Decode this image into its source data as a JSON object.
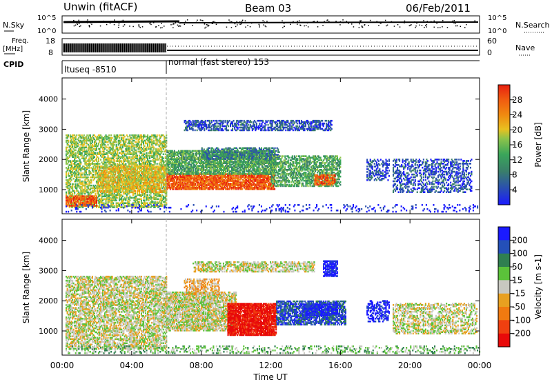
{
  "header": {
    "station": "Unwin (fitACF)",
    "beam": "Beam 03",
    "date": "06/Feb/2011"
  },
  "panels": {
    "nsky_label": "N.Sky",
    "nsearch_label": "N.Search",
    "noise_ticks_left": [
      "10^5",
      "10^0"
    ],
    "noise_ticks_right": [
      "10^5",
      "10^0"
    ],
    "freq_label": "Freq.",
    "freq_unit": "[MHz]",
    "freq_ticks": [
      "18",
      "8"
    ],
    "nave_label": "Nave",
    "nave_ticks": [
      "60",
      "0"
    ],
    "cpid_label": "CPID",
    "cpid_1": "ltuseq -8510",
    "cpid_2": "normal (fast stereo) 153"
  },
  "colors": {
    "power": [
      "#1a1aff",
      "#2a4fb0",
      "#3a7f6a",
      "#3aa65a",
      "#8cc34a",
      "#e8c020",
      "#f08a10",
      "#f05a10",
      "#e82010"
    ],
    "velocity": [
      "#1a1aff",
      "#2450b8",
      "#2f7f50",
      "#5bc23a",
      "#c8c8c0",
      "#e8a020",
      "#f07a10",
      "#f04010",
      "#e80a0a"
    ]
  },
  "chart_data": [
    {
      "type": "heatmap",
      "name": "power",
      "xlabel": "Time UT",
      "ylabel": "Slant Range [km]",
      "xlim": [
        0,
        24
      ],
      "ylim": [
        200,
        4700
      ],
      "x_ticks": [
        "00:00",
        "04:00",
        "08:00",
        "12:00",
        "16:00",
        "20:00",
        "00:00"
      ],
      "y_ticks": [
        1000,
        2000,
        3000,
        4000
      ],
      "colorbar_label": "Power [dB]",
      "colorbar_ticks": [
        "4",
        "8",
        "12",
        "16",
        "20",
        "24",
        "28"
      ],
      "regions": [
        {
          "t0": 0.2,
          "t1": 6.0,
          "r0": 400,
          "r1": 2800,
          "level": 4,
          "density": 0.55
        },
        {
          "t0": 0.2,
          "t1": 2.0,
          "r0": 450,
          "r1": 800,
          "level": 7,
          "density": 0.7
        },
        {
          "t0": 2.0,
          "t1": 6.0,
          "r0": 900,
          "r1": 1800,
          "level": 5,
          "density": 0.6
        },
        {
          "t0": 6.0,
          "t1": 12.2,
          "r0": 1000,
          "r1": 1500,
          "level": 7,
          "density": 0.85
        },
        {
          "t0": 6.0,
          "t1": 12.2,
          "r0": 1500,
          "r1": 2300,
          "level": 3,
          "density": 0.8
        },
        {
          "t0": 8.0,
          "t1": 12.5,
          "r0": 2000,
          "r1": 2400,
          "level": 2,
          "density": 0.5
        },
        {
          "t0": 7.0,
          "t1": 15.5,
          "r0": 2950,
          "r1": 3300,
          "level": 1,
          "density": 0.55
        },
        {
          "t0": 12.0,
          "t1": 16.0,
          "r0": 1100,
          "r1": 2100,
          "level": 3,
          "density": 0.6
        },
        {
          "t0": 14.5,
          "t1": 15.7,
          "r0": 1150,
          "r1": 1500,
          "level": 7,
          "density": 0.7
        },
        {
          "t0": 17.5,
          "t1": 18.8,
          "r0": 1300,
          "r1": 2000,
          "level": 1,
          "density": 0.45
        },
        {
          "t0": 19.0,
          "t1": 23.5,
          "r0": 900,
          "r1": 2000,
          "level": 1,
          "density": 0.4
        },
        {
          "t0": 0.2,
          "t1": 24.0,
          "r0": 250,
          "r1": 500,
          "level": 0,
          "density": 0.12
        }
      ]
    },
    {
      "type": "heatmap",
      "name": "velocity",
      "xlabel": "Time UT",
      "ylabel": "Slant Range [km]",
      "xlim": [
        0,
        24
      ],
      "ylim": [
        200,
        4700
      ],
      "x_ticks": [
        "00:00",
        "04:00",
        "08:00",
        "12:00",
        "16:00",
        "20:00",
        "00:00"
      ],
      "y_ticks": [
        1000,
        2000,
        3000,
        4000
      ],
      "colorbar_label": "Velocity [m s-1]",
      "colorbar_ticks": [
        "200",
        "100",
        "50",
        "15",
        "-15",
        "-50",
        "-100",
        "-200"
      ],
      "regions": [
        {
          "t0": 0.2,
          "t1": 6.0,
          "r0": 400,
          "r1": 2800,
          "level": 4,
          "density": 0.6
        },
        {
          "t0": 6.0,
          "t1": 10.0,
          "r0": 1000,
          "r1": 2300,
          "level": 4,
          "density": 0.75
        },
        {
          "t0": 7.0,
          "t1": 9.0,
          "r0": 2200,
          "r1": 2700,
          "level": 5,
          "density": 0.5
        },
        {
          "t0": 9.5,
          "t1": 12.3,
          "r0": 850,
          "r1": 1900,
          "level": 8,
          "density": 0.9
        },
        {
          "t0": 12.3,
          "t1": 16.3,
          "r0": 1200,
          "r1": 2000,
          "level": 1,
          "density": 0.7
        },
        {
          "t0": 13.8,
          "t1": 15.8,
          "r0": 1500,
          "r1": 1900,
          "level": 0,
          "density": 0.6
        },
        {
          "t0": 7.5,
          "t1": 14.5,
          "r0": 2950,
          "r1": 3300,
          "level": 4,
          "density": 0.55
        },
        {
          "t0": 15.0,
          "t1": 15.8,
          "r0": 2800,
          "r1": 3300,
          "level": 0,
          "density": 0.8
        },
        {
          "t0": 17.5,
          "t1": 18.8,
          "r0": 1300,
          "r1": 2000,
          "level": 0,
          "density": 0.45
        },
        {
          "t0": 19.0,
          "t1": 23.8,
          "r0": 900,
          "r1": 1900,
          "level": 4,
          "density": 0.45
        },
        {
          "t0": 0.2,
          "t1": 24.0,
          "r0": 250,
          "r1": 500,
          "level": 3,
          "density": 0.25
        }
      ]
    }
  ]
}
